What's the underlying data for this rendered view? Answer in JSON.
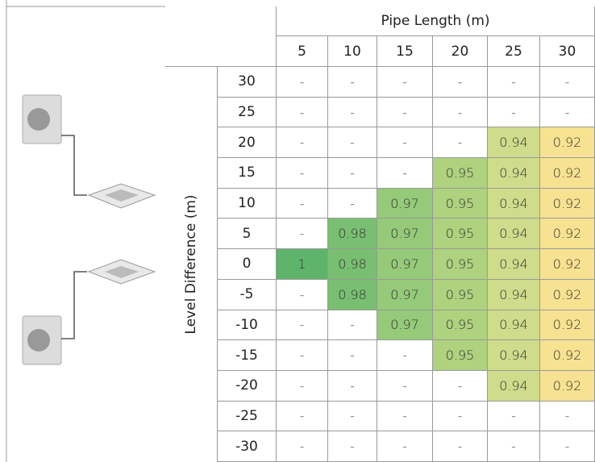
{
  "table": {
    "title": "Pipe Length (m)",
    "row_title": "Level Difference (m)",
    "columns": [
      5,
      10,
      15,
      20,
      25,
      30
    ],
    "column_fills": [
      "#5fb46c",
      "#79bf71",
      "#95ca79",
      "#aed27e",
      "#cfdc8b",
      "#f6e290"
    ],
    "rows": [
      {
        "label": 30,
        "cells": [
          "-",
          "-",
          "-",
          "-",
          "-",
          "-"
        ]
      },
      {
        "label": 25,
        "cells": [
          "-",
          "-",
          "-",
          "-",
          "-",
          "-"
        ]
      },
      {
        "label": 20,
        "cells": [
          "-",
          "-",
          "-",
          "-",
          0.94,
          0.92
        ]
      },
      {
        "label": 15,
        "cells": [
          "-",
          "-",
          "-",
          0.95,
          0.94,
          0.92
        ]
      },
      {
        "label": 10,
        "cells": [
          "-",
          "-",
          0.97,
          0.95,
          0.94,
          0.92
        ]
      },
      {
        "label": 5,
        "cells": [
          "-",
          0.98,
          0.97,
          0.95,
          0.94,
          0.92
        ]
      },
      {
        "label": 0,
        "cells": [
          1,
          0.98,
          0.97,
          0.95,
          0.94,
          0.92
        ]
      },
      {
        "label": -5,
        "cells": [
          "-",
          0.98,
          0.97,
          0.95,
          0.94,
          0.92
        ]
      },
      {
        "label": -10,
        "cells": [
          "-",
          "-",
          0.97,
          0.95,
          0.94,
          0.92
        ]
      },
      {
        "label": -15,
        "cells": [
          "-",
          "-",
          "-",
          0.95,
          0.94,
          0.92
        ]
      },
      {
        "label": -20,
        "cells": [
          "-",
          "-",
          "-",
          "-",
          0.94,
          0.92
        ]
      },
      {
        "label": -25,
        "cells": [
          "-",
          "-",
          "-",
          "-",
          "-",
          "-"
        ]
      },
      {
        "label": -30,
        "cells": [
          "-",
          "-",
          "-",
          "-",
          "-",
          "-"
        ]
      }
    ]
  }
}
